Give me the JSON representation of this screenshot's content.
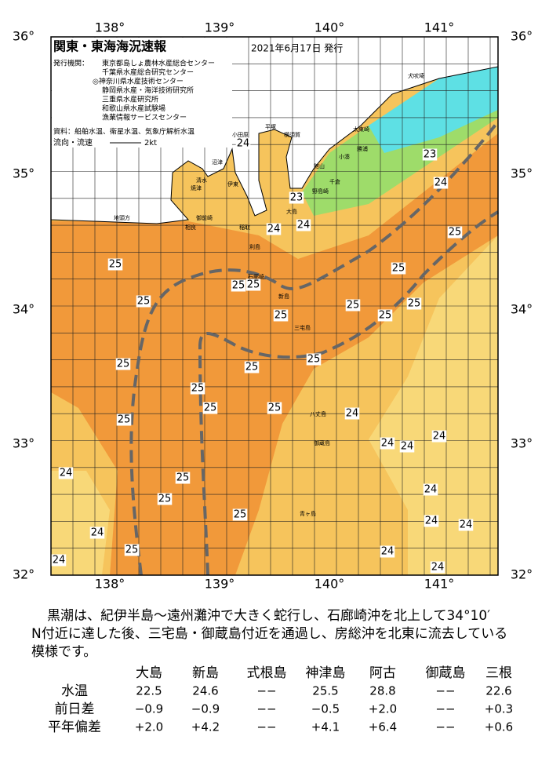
{
  "header": {
    "title": "関東・東海海況速報",
    "date": "2021年6月17日 発行",
    "issuer_label": "発行機関：",
    "issuers": [
      "東京都島しょ農林水産総合センター",
      "千葉県水産総合研究センター",
      "◎神奈川県水産技術センター",
      "静岡県水産・海洋技術研究所",
      "三重県水産研究所",
      "和歌山県水産試験場",
      "漁業情報サービスセンター"
    ],
    "sources": "資料：船舶水温、衛星水温、気象庁解析水温",
    "current_label": "流向・流速",
    "current_scale": "2kt"
  },
  "map": {
    "lon_labels": [
      "138°",
      "139°",
      "140°",
      "141°"
    ],
    "lat_labels": [
      "36°",
      "35°",
      "34°",
      "33°",
      "32°"
    ],
    "places": [
      "犬吠埼",
      "太東崎",
      "勝浦",
      "小湊",
      "館山",
      "千倉",
      "野島崎",
      "横須賀",
      "平塚",
      "小田原",
      "伊東",
      "稲取",
      "石廊崎",
      "沼津",
      "清水",
      "焼津",
      "御前崎",
      "相良",
      "地頭方",
      "大島",
      "利島",
      "新島",
      "三宅島",
      "御蔵島",
      "八丈島",
      "青ヶ島"
    ],
    "temperature_labels": [
      24,
      23,
      24,
      23,
      24,
      24,
      25,
      25,
      25,
      25,
      25,
      25,
      25,
      25,
      25,
      25,
      25,
      25,
      25,
      25,
      25,
      25,
      25,
      24,
      24,
      24,
      24,
      24,
      25,
      25,
      24,
      25,
      24,
      24,
      24,
      25,
      24,
      24,
      24
    ]
  },
  "description": [
    "黒潮は、紀伊半島～遠州灘沖で大きく蛇行し、石廊崎沖を北上して34°10′",
    "N付近に達した後、三宅島・御蔵島付近を通過し、房総沖を北東に流去している",
    "模様です。"
  ],
  "table": {
    "columns": [
      "大島",
      "新島",
      "式根島",
      "神津島",
      "阿古",
      "御蔵島",
      "三根"
    ],
    "rows": [
      {
        "label": "水温",
        "cells": [
          "22.5",
          "24.6",
          "−−",
          "25.5",
          "28.8",
          "−−",
          "22.6"
        ]
      },
      {
        "label": "前日差",
        "cells": [
          "−0.9",
          "−0.9",
          "−−",
          "−0.5",
          "+2.0",
          "−−",
          "+0.3"
        ]
      },
      {
        "label": "平年偏差",
        "cells": [
          "+2.0",
          "+4.2",
          "−−",
          "+4.1",
          "+6.4",
          "−−",
          "+0.6"
        ]
      }
    ]
  }
}
